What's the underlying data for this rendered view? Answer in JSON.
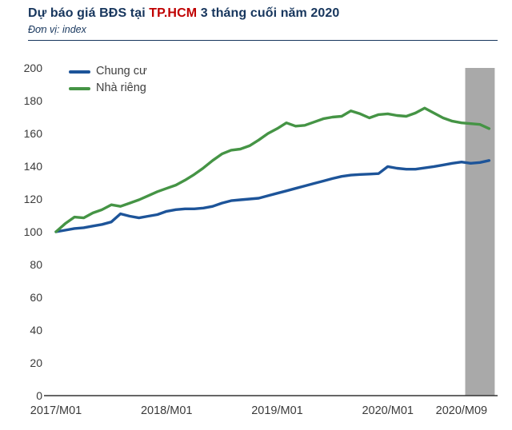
{
  "header": {
    "title_prefix": "Dự báo giá BĐS tại ",
    "title_highlight": "TP.HCM",
    "title_suffix": " 3 tháng cuối năm 2020",
    "subtitle": "Đơn vị: index",
    "title_color": "#17365d",
    "highlight_color": "#c00000"
  },
  "chart_data": {
    "type": "line",
    "title": "Dự báo giá BĐS tại TP.HCM 3 tháng cuối năm 2020",
    "unit_label": "Đơn vị: index",
    "x_unit": "month",
    "x_range": [
      "2017/M01",
      "2020/M12"
    ],
    "ylim": [
      0,
      200
    ],
    "grid": false,
    "legend_position": "top-left-inside",
    "y_ticks": [
      0,
      20,
      40,
      60,
      80,
      100,
      120,
      140,
      160,
      180,
      200
    ],
    "x_ticks": [
      {
        "label": "2017/M01",
        "month_index": 0
      },
      {
        "label": "2018/M01",
        "month_index": 12
      },
      {
        "label": "2019/M01",
        "month_index": 24
      },
      {
        "label": "2020/M01",
        "month_index": 36
      },
      {
        "label": "2020/M09",
        "month_index": 44
      }
    ],
    "series": [
      {
        "name": "Chung cư",
        "color": "#1d5499",
        "values": [
          100,
          101,
          102,
          102.5,
          103.5,
          104.5,
          106,
          111,
          109.5,
          108.5,
          109.5,
          110.5,
          112.5,
          113.5,
          114,
          114,
          114.5,
          115.5,
          117.5,
          119,
          119.5,
          120,
          120.5,
          122,
          123.5,
          125,
          126.5,
          128,
          129.5,
          131,
          132.5,
          133.8,
          134.6,
          135,
          135.2,
          135.5,
          139.8,
          138.8,
          138.2,
          138.2,
          139,
          139.8,
          140.8,
          141.8,
          142.6,
          141.8,
          142.3,
          143.5
        ]
      },
      {
        "name": "Nhà riêng",
        "color": "#459445",
        "values": [
          100,
          105,
          109,
          108.5,
          111.5,
          113.5,
          116.5,
          115.5,
          117.5,
          119.5,
          122,
          124.5,
          126.5,
          128.5,
          131.5,
          135,
          139,
          143.5,
          147.5,
          149.8,
          150.5,
          152.5,
          156,
          160,
          163,
          166.5,
          164.5,
          165,
          167,
          169,
          170,
          170.5,
          173.8,
          172,
          169.5,
          171.5,
          172,
          171,
          170.5,
          172.5,
          175.5,
          172.5,
          169.5,
          167.5,
          166.5,
          166,
          165.5,
          163
        ]
      }
    ],
    "forecast_band": {
      "from_month_index": 44.4,
      "to_month_index": 47.6,
      "color": "#a9a9a9"
    },
    "axis_color": "#333333",
    "tick_label_color": "#3a3a3a"
  }
}
